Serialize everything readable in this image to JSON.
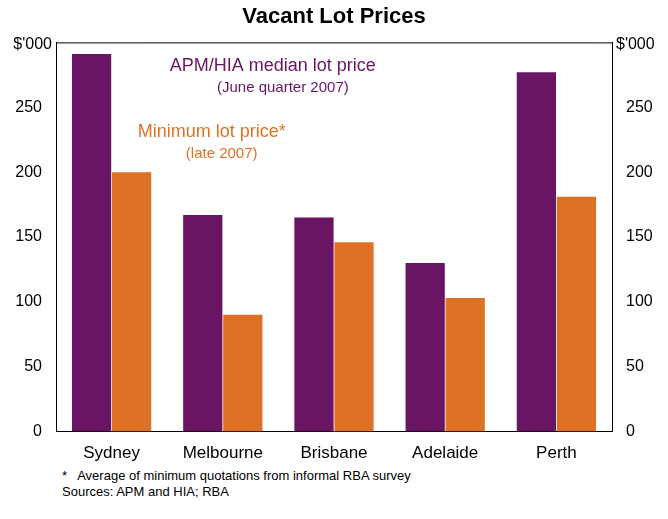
{
  "chart_data": {
    "type": "bar",
    "title": "Vacant Lot Prices",
    "y_unit": "$'000",
    "categories": [
      "Sydney",
      "Melbourne",
      "Brisbane",
      "Adelaide",
      "Perth"
    ],
    "series": [
      {
        "name": "APM/HIA median lot price",
        "period": "(June quarter 2007)",
        "color": "#6a1464",
        "values": [
          291,
          167,
          165,
          130,
          277
        ]
      },
      {
        "name": "Minimum lot price*",
        "period": "(late 2007)",
        "color": "#df7127",
        "values": [
          200,
          90,
          146,
          103,
          181
        ]
      }
    ],
    "ylim": [
      0,
      300
    ],
    "yticks": [
      0,
      50,
      100,
      150,
      200,
      250
    ],
    "grid": false,
    "notes": [
      "*   Average of minimum quotations from informal RBA survey",
      "Sources: APM and HIA; RBA"
    ]
  }
}
